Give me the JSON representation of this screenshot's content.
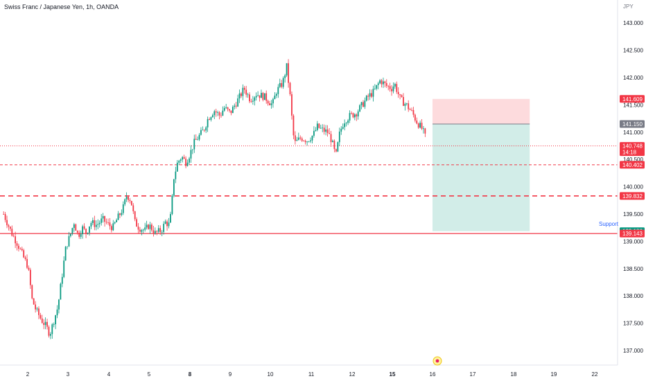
{
  "header": {
    "title": "Swiss Franc / Japanese Yen, 1h, OANDA",
    "currency": "JPY"
  },
  "chart_data": {
    "type": "candlestick",
    "ylim": [
      136.8,
      143.4
    ],
    "yticks": [
      "137.000",
      "137.500",
      "138.000",
      "138.500",
      "139.000",
      "139.500",
      "140.000",
      "140.500",
      "141.000",
      "141.500",
      "142.000",
      "142.500",
      "143.000"
    ],
    "xticks": [
      "2",
      "3",
      "4",
      "5",
      "8",
      "9",
      "10",
      "11",
      "12",
      "15",
      "16",
      "17",
      "18",
      "19",
      "22"
    ],
    "grid": false,
    "price_tags": [
      {
        "value": 141.609,
        "label": "141.609",
        "color": "#f23645"
      },
      {
        "value": 141.15,
        "label": "141.150",
        "color": "#787b86"
      },
      {
        "value": 140.748,
        "label": "140.748",
        "sub": "14:18",
        "color": "#f23645"
      },
      {
        "value": 140.402,
        "label": "140.402",
        "color": "#f23645"
      },
      {
        "value": 139.832,
        "label": "139.832",
        "color": "#f23645"
      },
      {
        "value": 139.186,
        "label": "139.186",
        "color": "#089981"
      },
      {
        "value": 139.143,
        "label": "139.143",
        "color": "#f23645"
      }
    ],
    "horizontal_lines": [
      {
        "value": 140.748,
        "style": "dotted",
        "color": "#f23645"
      },
      {
        "value": 140.402,
        "style": "dashed-thin",
        "color": "#f23645"
      },
      {
        "value": 139.832,
        "style": "dashed-thick",
        "color": "#f23645"
      },
      {
        "value": 139.143,
        "style": "solid",
        "color": "#f23645",
        "label": "Support"
      }
    ],
    "position": {
      "type": "short",
      "entry": 141.15,
      "stop": 141.609,
      "target": 139.186,
      "start_day": 16.0,
      "end_day": 18.4
    },
    "up_color": "#089981",
    "down_color": "#f23645",
    "path": [
      [
        1.4,
        139.5
      ],
      [
        1.6,
        139.15
      ],
      [
        1.75,
        138.95
      ],
      [
        1.9,
        138.7
      ],
      [
        2.0,
        138.55
      ],
      [
        2.05,
        138.3
      ],
      [
        2.1,
        137.95
      ],
      [
        2.2,
        137.75
      ],
      [
        2.35,
        137.55
      ],
      [
        2.45,
        137.45
      ],
      [
        2.55,
        137.3
      ],
      [
        2.65,
        137.55
      ],
      [
        2.75,
        137.8
      ],
      [
        2.85,
        138.35
      ],
      [
        2.95,
        138.9
      ],
      [
        3.05,
        139.1
      ],
      [
        3.15,
        139.35
      ],
      [
        3.25,
        139.1
      ],
      [
        3.35,
        139.25
      ],
      [
        3.45,
        139.15
      ],
      [
        3.55,
        139.35
      ],
      [
        3.7,
        139.3
      ],
      [
        3.85,
        139.4
      ],
      [
        4.0,
        139.3
      ],
      [
        4.1,
        139.25
      ],
      [
        4.2,
        139.4
      ],
      [
        4.35,
        139.6
      ],
      [
        4.45,
        139.85
      ],
      [
        4.55,
        139.75
      ],
      [
        4.65,
        139.35
      ],
      [
        4.75,
        139.25
      ],
      [
        4.9,
        139.2
      ],
      [
        5.0,
        139.3
      ],
      [
        5.15,
        139.15
      ],
      [
        5.3,
        139.2
      ],
      [
        5.4,
        139.35
      ],
      [
        5.5,
        139.3
      ],
      [
        5.55,
        139.6
      ],
      [
        5.6,
        140.15
      ],
      [
        5.7,
        140.45
      ],
      [
        5.8,
        140.55
      ],
      [
        5.9,
        140.45
      ],
      [
        6.0,
        140.6
      ],
      [
        6.1,
        140.8
      ],
      [
        6.2,
        140.9
      ],
      [
        6.35,
        141.05
      ],
      [
        6.45,
        141.25
      ],
      [
        6.6,
        141.4
      ],
      [
        6.75,
        141.3
      ],
      [
        6.85,
        141.45
      ],
      [
        7.0,
        141.35
      ],
      [
        7.2,
        141.6
      ],
      [
        7.35,
        141.8
      ],
      [
        7.5,
        141.6
      ],
      [
        7.65,
        141.7
      ],
      [
        7.85,
        141.65
      ],
      [
        8.05,
        141.5
      ],
      [
        8.15,
        141.75
      ],
      [
        8.3,
        141.9
      ],
      [
        8.4,
        142.2
      ],
      [
        8.5,
        141.55
      ],
      [
        8.55,
        141.0
      ],
      [
        8.6,
        140.8
      ],
      [
        8.75,
        140.9
      ],
      [
        8.9,
        140.85
      ],
      [
        9.05,
        140.95
      ],
      [
        9.15,
        141.1
      ],
      [
        9.25,
        141.05
      ],
      [
        9.4,
        141.0
      ],
      [
        9.5,
        140.85
      ],
      [
        9.6,
        140.55
      ],
      [
        9.7,
        141.0
      ],
      [
        9.8,
        141.2
      ],
      [
        9.95,
        141.3
      ],
      [
        10.1,
        141.35
      ],
      [
        10.25,
        141.5
      ],
      [
        10.4,
        141.65
      ],
      [
        10.55,
        141.75
      ],
      [
        10.7,
        141.95
      ],
      [
        10.85,
        141.85
      ],
      [
        11.0,
        141.8
      ],
      [
        11.05,
        141.9
      ],
      [
        11.2,
        141.6
      ],
      [
        11.35,
        141.5
      ],
      [
        11.5,
        141.35
      ],
      [
        11.6,
        141.2
      ],
      [
        11.75,
        141.05
      ],
      [
        11.85,
        140.85
      ],
      [
        11.95,
        140.6
      ],
      [
        12.05,
        140.85
      ],
      [
        12.15,
        140.75
      ]
    ]
  }
}
